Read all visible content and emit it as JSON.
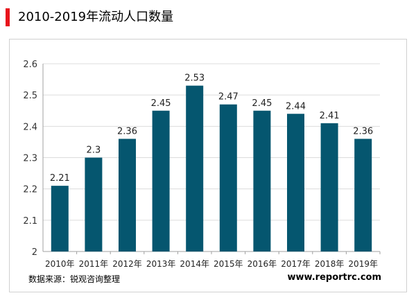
{
  "header": {
    "title": "2010-2019年流动人口数量"
  },
  "footer": {
    "source": "数据来源：锐观咨询整理",
    "website": "www.reportrc.com"
  },
  "colors": {
    "bar": "#05566f",
    "accent": "#e8141c",
    "grid": "#dcdcdc"
  },
  "chart_data": {
    "type": "bar",
    "title": "2010-2019年流动人口数量",
    "xlabel": "",
    "ylabel": "",
    "categories": [
      "2010年",
      "2011年",
      "2012年",
      "2013年",
      "2014年",
      "2015年",
      "2016年",
      "2017年",
      "2018年",
      "2019年"
    ],
    "values": [
      2.21,
      2.3,
      2.36,
      2.45,
      2.53,
      2.47,
      2.45,
      2.44,
      2.41,
      2.36
    ],
    "data_labels": [
      "2.21",
      "2.3",
      "2.36",
      "2.45",
      "2.53",
      "2.47",
      "2.45",
      "2.44",
      "2.41",
      "2.36"
    ],
    "ylim": [
      2,
      2.6
    ],
    "yticks": [
      "2",
      "2.1",
      "2.2",
      "2.3",
      "2.4",
      "2.5",
      "2.6"
    ],
    "grid": true,
    "legend": "none"
  }
}
